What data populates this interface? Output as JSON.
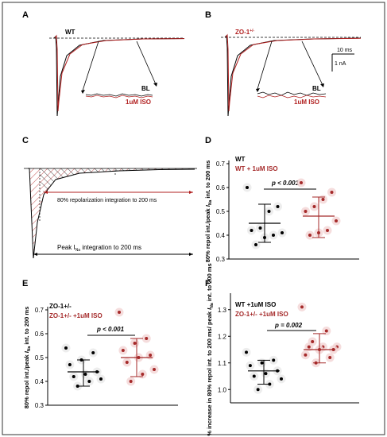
{
  "panels": {
    "A": {
      "letter": "A",
      "label_wt": "WT",
      "label_bl": "BL",
      "label_iso": "1uM ISO"
    },
    "B": {
      "letter": "B",
      "label_zo": "ZO-1",
      "label_zo_sup": "+/-",
      "label_bl": "BL",
      "label_iso": "1uM ISO",
      "scale_time": "10 ms",
      "scale_current": "1 nA"
    },
    "C": {
      "letter": "C",
      "annotation_80": "80% repolarization integration to 200 ms",
      "annotation_peak_pre": "Peak I",
      "annotation_peak_sub": "Na",
      "annotation_peak_post": " integration to 200 ms"
    },
    "D": {
      "letter": "D"
    },
    "E": {
      "letter": "E"
    },
    "F": {
      "letter": "F"
    }
  },
  "colors": {
    "control": "#000000",
    "iso": "#a52a2a",
    "iso_fill": "#f2d5d5"
  },
  "chart_data": [
    {
      "panel": "D",
      "type": "scatter",
      "ylabel_parts": [
        "80% repol int./peak ",
        "I",
        "Na",
        " int. to 200 ms"
      ],
      "ylim": [
        0.3,
        0.7
      ],
      "yticks": [
        0.3,
        0.4,
        0.5,
        0.6,
        0.7
      ],
      "legend": [
        "WT",
        "WT + 1uM ISO"
      ],
      "pvalue": "p < 0.001",
      "series": [
        {
          "name": "WT",
          "color": "#000000",
          "mean": 0.45,
          "sd_low": 0.37,
          "sd_high": 0.53,
          "values": [
            0.6,
            0.52,
            0.5,
            0.43,
            0.42,
            0.41,
            0.4,
            0.39,
            0.36
          ]
        },
        {
          "name": "WT + 1uM ISO",
          "color": "#a52a2a",
          "mean": 0.48,
          "sd_low": 0.39,
          "sd_high": 0.56,
          "values": [
            0.62,
            0.58,
            0.55,
            0.52,
            0.5,
            0.46,
            0.42,
            0.41,
            0.4
          ]
        }
      ]
    },
    {
      "panel": "E",
      "type": "scatter",
      "ylabel_parts": [
        "80% repol int./peak ",
        "I",
        "Na",
        " int. to 200 ms"
      ],
      "ylim": [
        0.3,
        0.7
      ],
      "yticks": [
        0.3,
        0.4,
        0.5,
        0.6,
        0.7
      ],
      "legend": [
        "ZO-1+/-",
        "ZO-1+/- +1uM ISO"
      ],
      "pvalue": "p < 0.001",
      "series": [
        {
          "name": "ZO-1+/-",
          "color": "#000000",
          "mean": 0.44,
          "sd_low": 0.38,
          "sd_high": 0.49,
          "values": [
            0.54,
            0.52,
            0.49,
            0.47,
            0.44,
            0.43,
            0.42,
            0.41,
            0.4,
            0.38
          ]
        },
        {
          "name": "ZO-1+/- +1uM ISO",
          "color": "#a52a2a",
          "mean": 0.5,
          "sd_low": 0.42,
          "sd_high": 0.58,
          "values": [
            0.69,
            0.58,
            0.56,
            0.53,
            0.51,
            0.5,
            0.48,
            0.45,
            0.43,
            0.4
          ]
        }
      ]
    },
    {
      "panel": "F",
      "type": "scatter",
      "ylabel_parts": [
        "% increase in 80% repol int. to 200 ms/ peak ",
        "I",
        "Na",
        " int. to 200 ms"
      ],
      "ylim": [
        0.95,
        1.35
      ],
      "yticks": [
        1.0,
        1.1,
        1.2,
        1.3
      ],
      "legend": [
        "WT +1uM ISO",
        "ZO-1+/- +1uM ISO"
      ],
      "pvalue": "p = 0.002",
      "series": [
        {
          "name": "WT +1uM ISO",
          "color": "#000000",
          "mean": 1.07,
          "sd_low": 1.02,
          "sd_high": 1.11,
          "values": [
            1.14,
            1.11,
            1.1,
            1.09,
            1.07,
            1.06,
            1.05,
            1.04,
            1.02,
            1.0
          ]
        },
        {
          "name": "ZO-1+/- +1uM ISO",
          "color": "#a52a2a",
          "mean": 1.15,
          "sd_low": 1.1,
          "sd_high": 1.21,
          "values": [
            1.31,
            1.22,
            1.18,
            1.16,
            1.16,
            1.16,
            1.15,
            1.15,
            1.13,
            1.12,
            1.1
          ]
        }
      ]
    }
  ]
}
